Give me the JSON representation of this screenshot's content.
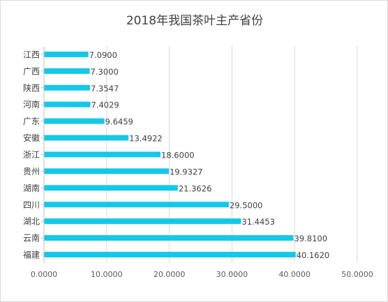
{
  "chart_data": {
    "type": "bar",
    "orientation": "horizontal",
    "title": "2018年我国茶叶主产省份",
    "categories": [
      "江西",
      "广西",
      "陕西",
      "河南",
      "广东",
      "安徽",
      "浙江",
      "贵州",
      "湖南",
      "四川",
      "湖北",
      "云南",
      "福建"
    ],
    "values": [
      7.09,
      7.3,
      7.3547,
      7.4029,
      9.6459,
      13.4922,
      18.6,
      19.9327,
      21.3626,
      29.5,
      31.4453,
      39.81,
      40.162
    ],
    "value_labels": [
      "7.0900",
      "7.3000",
      "7.3547",
      "7.4029",
      "9.6459",
      "13.4922",
      "18.6000",
      "19.9327",
      "21.3626",
      "29.5000",
      "31.4453",
      "39.8100",
      "40.1620"
    ],
    "xlim": [
      0,
      50
    ],
    "xticks": [
      0,
      10,
      20,
      30,
      40,
      50
    ],
    "xtick_labels": [
      "0.0000",
      "10.0000",
      "20.0000",
      "30.0000",
      "40.0000",
      "50.0000"
    ],
    "grid": "vertical",
    "legend": "none",
    "bar_color": "#14c8e8",
    "grid_color": "#d9d9d9",
    "axis_color": "#bfbfbf"
  }
}
